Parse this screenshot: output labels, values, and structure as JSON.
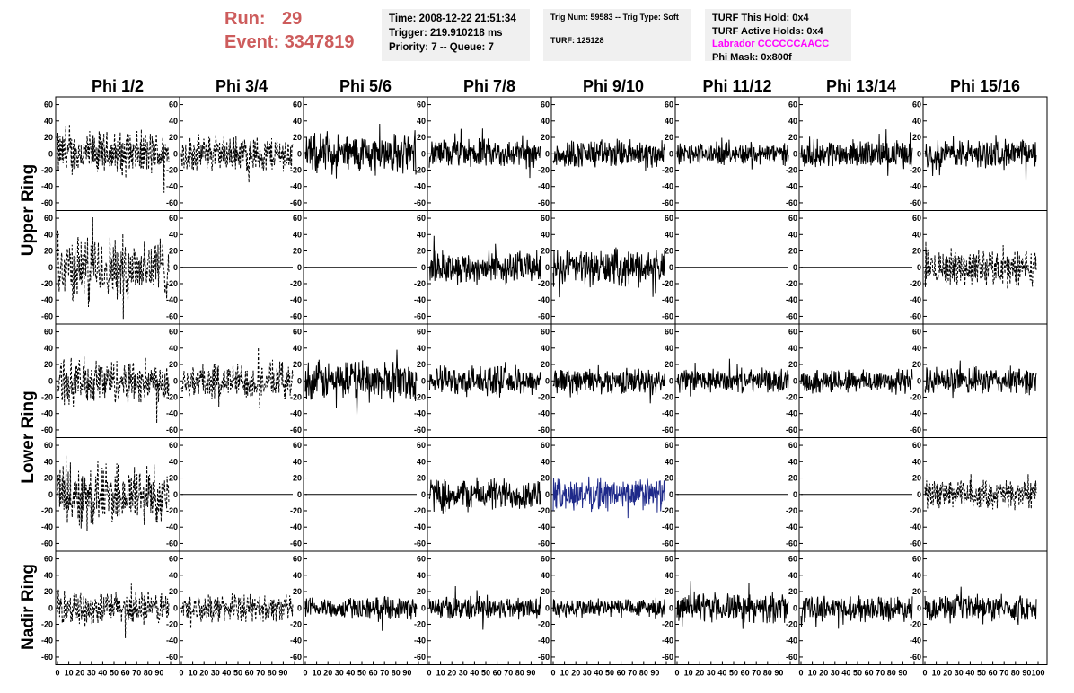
{
  "header": {
    "run_label": "Run:",
    "run_value": "29",
    "event_label": "Event:",
    "event_value": "3347819",
    "info1": [
      "Time: 2008-12-22 21:51:34",
      "Trigger: 219.910218 ms",
      "Priority: 7 -- Queue: 7"
    ],
    "info2": [
      "Trig Num: 59583 -- Trig Type: Soft",
      "",
      "TURF: 125128"
    ],
    "info3": [
      "TURF This Hold: 0x4",
      "TURF Active Holds: 0x4",
      "Labrador CCCCCCAACC",
      "Phi Mask: 0x800f"
    ]
  },
  "chart_data": {
    "type": "line",
    "columns": [
      "Phi 1/2",
      "Phi 3/4",
      "Phi 5/6",
      "Phi 7/8",
      "Phi 9/10",
      "Phi 11/12",
      "Phi 13/14",
      "Phi 15/16"
    ],
    "rows": [
      "Upper Ring",
      "Lower Ring",
      "Nadir Ring"
    ],
    "ylim": [
      -65,
      65
    ],
    "yticks": [
      -60,
      -40,
      -20,
      0,
      20,
      40,
      60
    ],
    "xlim": [
      0,
      100
    ],
    "xticks": [
      0,
      10,
      20,
      30,
      40,
      50,
      60,
      70,
      80,
      90,
      100
    ],
    "highlight_color": "#1f2a8a",
    "panels": [
      {
        "row": 0,
        "col": 0,
        "style": "dashed",
        "amp": 25
      },
      {
        "row": 0,
        "col": 1,
        "style": "dashed",
        "amp": 20
      },
      {
        "row": 0,
        "col": 2,
        "style": "solid",
        "amp": 22
      },
      {
        "row": 0,
        "col": 3,
        "style": "solid",
        "amp": 16
      },
      {
        "row": 0,
        "col": 4,
        "style": "solid",
        "amp": 16
      },
      {
        "row": 0,
        "col": 5,
        "style": "solid",
        "amp": 12
      },
      {
        "row": 0,
        "col": 6,
        "style": "solid",
        "amp": 15
      },
      {
        "row": 0,
        "col": 7,
        "style": "solid",
        "amp": 16
      },
      {
        "row": 1,
        "col": 0,
        "style": "dashed",
        "amp": 35
      },
      {
        "row": 1,
        "col": 1,
        "style": "flat",
        "amp": 0
      },
      {
        "row": 1,
        "col": 2,
        "style": "flat",
        "amp": 0
      },
      {
        "row": 1,
        "col": 3,
        "style": "solid",
        "amp": 18
      },
      {
        "row": 1,
        "col": 4,
        "style": "solid",
        "amp": 20
      },
      {
        "row": 1,
        "col": 5,
        "style": "flat",
        "amp": 0
      },
      {
        "row": 1,
        "col": 6,
        "style": "flat",
        "amp": 0
      },
      {
        "row": 1,
        "col": 7,
        "style": "dashed",
        "amp": 20
      },
      {
        "row": 2,
        "col": 0,
        "style": "dashed",
        "amp": 25
      },
      {
        "row": 2,
        "col": 1,
        "style": "dashed",
        "amp": 20
      },
      {
        "row": 2,
        "col": 2,
        "style": "solid",
        "amp": 22
      },
      {
        "row": 2,
        "col": 3,
        "style": "solid",
        "amp": 16
      },
      {
        "row": 2,
        "col": 4,
        "style": "solid",
        "amp": 14
      },
      {
        "row": 2,
        "col": 5,
        "style": "solid",
        "amp": 13
      },
      {
        "row": 2,
        "col": 6,
        "style": "solid",
        "amp": 14
      },
      {
        "row": 2,
        "col": 7,
        "style": "solid",
        "amp": 15
      },
      {
        "row": 3,
        "col": 0,
        "style": "dashed",
        "amp": 35
      },
      {
        "row": 3,
        "col": 1,
        "style": "flat",
        "amp": 0
      },
      {
        "row": 3,
        "col": 2,
        "style": "flat",
        "amp": 0
      },
      {
        "row": 3,
        "col": 3,
        "style": "solid",
        "amp": 18
      },
      {
        "row": 3,
        "col": 4,
        "style": "highlight",
        "amp": 18
      },
      {
        "row": 3,
        "col": 5,
        "style": "flat",
        "amp": 0
      },
      {
        "row": 3,
        "col": 6,
        "style": "flat",
        "amp": 0
      },
      {
        "row": 3,
        "col": 7,
        "style": "dashed",
        "amp": 16
      },
      {
        "row": 4,
        "col": 0,
        "style": "dashed",
        "amp": 18
      },
      {
        "row": 4,
        "col": 1,
        "style": "dashed",
        "amp": 15
      },
      {
        "row": 4,
        "col": 2,
        "style": "solid",
        "amp": 12
      },
      {
        "row": 4,
        "col": 3,
        "style": "solid",
        "amp": 13
      },
      {
        "row": 4,
        "col": 4,
        "style": "solid",
        "amp": 11
      },
      {
        "row": 4,
        "col": 5,
        "style": "solid",
        "amp": 16
      },
      {
        "row": 4,
        "col": 6,
        "style": "solid",
        "amp": 14
      },
      {
        "row": 4,
        "col": 7,
        "style": "solid",
        "amp": 14
      }
    ]
  }
}
